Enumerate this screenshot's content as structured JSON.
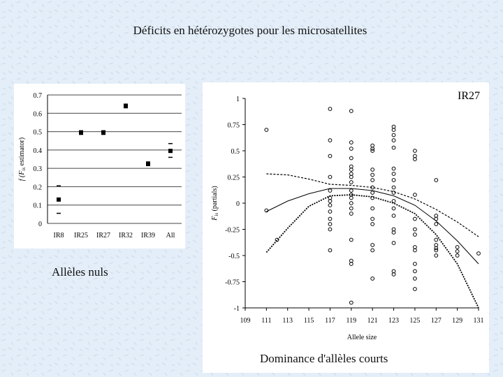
{
  "slide": {
    "title": "Déficits en hétérozygotes pour les microsatellites",
    "caption_left": "Allèles nuls",
    "caption_right": "Dominance d'allèles courts"
  },
  "colors": {
    "background": "#e4eef8",
    "panel": "#ffffff",
    "ink": "#000000"
  },
  "chart_data": [
    {
      "type": "scatter",
      "ylabel": "f (F_is estimator)",
      "ylabel_main": "f (F",
      "ylabel_sub": "is",
      "ylabel_rest": " estimator)",
      "ylim": [
        0,
        0.7
      ],
      "yticks": [
        0,
        0.1,
        0.2,
        0.3,
        0.4,
        0.5,
        0.6,
        0.7
      ],
      "ytick_labels": [
        "0",
        "0.1",
        "0.2",
        "0.3",
        "0.4",
        "0.5",
        "0.6",
        "0.7"
      ],
      "categories": [
        "IR8",
        "IR25",
        "IR27",
        "IR32",
        "IR39",
        "All"
      ],
      "points": [
        {
          "category": "IR8",
          "value": 0.13,
          "lower": 0.055,
          "upper": 0.205
        },
        {
          "category": "IR25",
          "value": 0.495,
          "lower": 0.485,
          "upper": 0.505
        },
        {
          "category": "IR27",
          "value": 0.495,
          "lower": 0.485,
          "upper": 0.505
        },
        {
          "category": "IR32",
          "value": 0.64,
          "lower": 0.63,
          "upper": 0.65
        },
        {
          "category": "IR39",
          "value": 0.325,
          "lower": 0.315,
          "upper": 0.335
        },
        {
          "category": "All",
          "value": 0.395,
          "lower": 0.36,
          "upper": 0.435
        }
      ]
    },
    {
      "type": "scatter",
      "title": "IR27",
      "xlabel": "Allele size",
      "ylabel": "F_is (partials)",
      "ylabel_main": "F",
      "ylabel_sub": "is",
      "ylabel_rest": " (partials)",
      "xlim": [
        109,
        131
      ],
      "ylim": [
        -1,
        1
      ],
      "xticks": [
        109,
        111,
        113,
        115,
        117,
        119,
        121,
        123,
        125,
        127,
        129,
        131
      ],
      "xtick_labels": [
        "109",
        "111",
        "113",
        "115",
        "117",
        "119",
        "121",
        "123",
        "125",
        "127",
        "129",
        "131"
      ],
      "yticks": [
        -1,
        -0.75,
        -0.5,
        -0.25,
        0,
        0.25,
        0.5,
        0.75,
        1
      ],
      "ytick_labels": [
        "-1",
        "-0.75",
        "-0.5",
        "-0.25",
        "0",
        "0.25",
        "0.5",
        "0.75",
        "1"
      ],
      "points": [
        [
          111,
          0.7
        ],
        [
          111,
          -0.07
        ],
        [
          112,
          -0.35
        ],
        [
          117,
          0.9
        ],
        [
          117,
          0.6
        ],
        [
          117,
          0.45
        ],
        [
          117,
          0.25
        ],
        [
          117,
          0.12
        ],
        [
          117,
          0.05
        ],
        [
          117,
          0.02
        ],
        [
          117,
          -0.02
        ],
        [
          117,
          -0.08
        ],
        [
          117,
          -0.15
        ],
        [
          117,
          -0.2
        ],
        [
          117,
          -0.25
        ],
        [
          117,
          -0.45
        ],
        [
          119,
          0.88
        ],
        [
          119,
          0.58
        ],
        [
          119,
          0.52
        ],
        [
          119,
          0.43
        ],
        [
          119,
          0.35
        ],
        [
          119,
          0.32
        ],
        [
          119,
          0.28
        ],
        [
          119,
          0.25
        ],
        [
          119,
          0.2
        ],
        [
          119,
          0.12
        ],
        [
          119,
          0.08
        ],
        [
          119,
          0.05
        ],
        [
          119,
          0.0
        ],
        [
          119,
          -0.05
        ],
        [
          119,
          -0.1
        ],
        [
          119,
          -0.35
        ],
        [
          119,
          -0.55
        ],
        [
          119,
          -0.58
        ],
        [
          119,
          -0.95
        ],
        [
          121,
          0.55
        ],
        [
          121,
          0.52
        ],
        [
          121,
          0.5
        ],
        [
          121,
          0.32
        ],
        [
          121,
          0.27
        ],
        [
          121,
          0.22
        ],
        [
          121,
          0.15
        ],
        [
          121,
          0.1
        ],
        [
          121,
          0.05
        ],
        [
          121,
          -0.05
        ],
        [
          121,
          -0.15
        ],
        [
          121,
          -0.2
        ],
        [
          121,
          -0.4
        ],
        [
          121,
          -0.45
        ],
        [
          121,
          -0.72
        ],
        [
          123,
          0.73
        ],
        [
          123,
          0.7
        ],
        [
          123,
          0.65
        ],
        [
          123,
          0.6
        ],
        [
          123,
          0.53
        ],
        [
          123,
          0.33
        ],
        [
          123,
          0.28
        ],
        [
          123,
          0.22
        ],
        [
          123,
          0.15
        ],
        [
          123,
          0.1
        ],
        [
          123,
          0.02
        ],
        [
          123,
          -0.05
        ],
        [
          123,
          -0.12
        ],
        [
          123,
          -0.25
        ],
        [
          123,
          -0.28
        ],
        [
          123,
          -0.38
        ],
        [
          123,
          -0.65
        ],
        [
          123,
          -0.68
        ],
        [
          125,
          0.5
        ],
        [
          125,
          0.45
        ],
        [
          125,
          0.42
        ],
        [
          125,
          0.08
        ],
        [
          125,
          -0.15
        ],
        [
          125,
          -0.25
        ],
        [
          125,
          -0.3
        ],
        [
          125,
          -0.42
        ],
        [
          125,
          -0.45
        ],
        [
          125,
          -0.58
        ],
        [
          125,
          -0.65
        ],
        [
          125,
          -0.72
        ],
        [
          125,
          -0.82
        ],
        [
          127,
          0.22
        ],
        [
          127,
          -0.12
        ],
        [
          127,
          -0.15
        ],
        [
          127,
          -0.2
        ],
        [
          127,
          -0.35
        ],
        [
          127,
          -0.4
        ],
        [
          127,
          -0.43
        ],
        [
          127,
          -0.45
        ],
        [
          127,
          -0.5
        ],
        [
          129,
          -0.42
        ],
        [
          129,
          -0.46
        ],
        [
          129,
          -0.5
        ],
        [
          131,
          -0.48
        ]
      ],
      "trend_fit": [
        [
          111,
          -0.08
        ],
        [
          113,
          0.02
        ],
        [
          115,
          0.09
        ],
        [
          117,
          0.14
        ],
        [
          119,
          0.14
        ],
        [
          121,
          0.12
        ],
        [
          123,
          0.07
        ],
        [
          125,
          -0.02
        ],
        [
          127,
          -0.17
        ],
        [
          129,
          -0.36
        ],
        [
          131,
          -0.58
        ]
      ],
      "ci_upper": [
        [
          111,
          0.28
        ],
        [
          113,
          0.27
        ],
        [
          115,
          0.23
        ],
        [
          117,
          0.18
        ],
        [
          119,
          0.17
        ],
        [
          121,
          0.15
        ],
        [
          123,
          0.11
        ],
        [
          125,
          0.04
        ],
        [
          127,
          -0.06
        ],
        [
          129,
          -0.18
        ],
        [
          131,
          -0.32
        ]
      ],
      "ci_lower": [
        [
          111,
          -0.47
        ],
        [
          113,
          -0.24
        ],
        [
          115,
          -0.03
        ],
        [
          117,
          0.07
        ],
        [
          119,
          0.08
        ],
        [
          121,
          0.06
        ],
        [
          123,
          0.0
        ],
        [
          125,
          -0.1
        ],
        [
          127,
          -0.3
        ],
        [
          129,
          -0.58
        ],
        [
          131,
          -1.0
        ]
      ]
    }
  ]
}
